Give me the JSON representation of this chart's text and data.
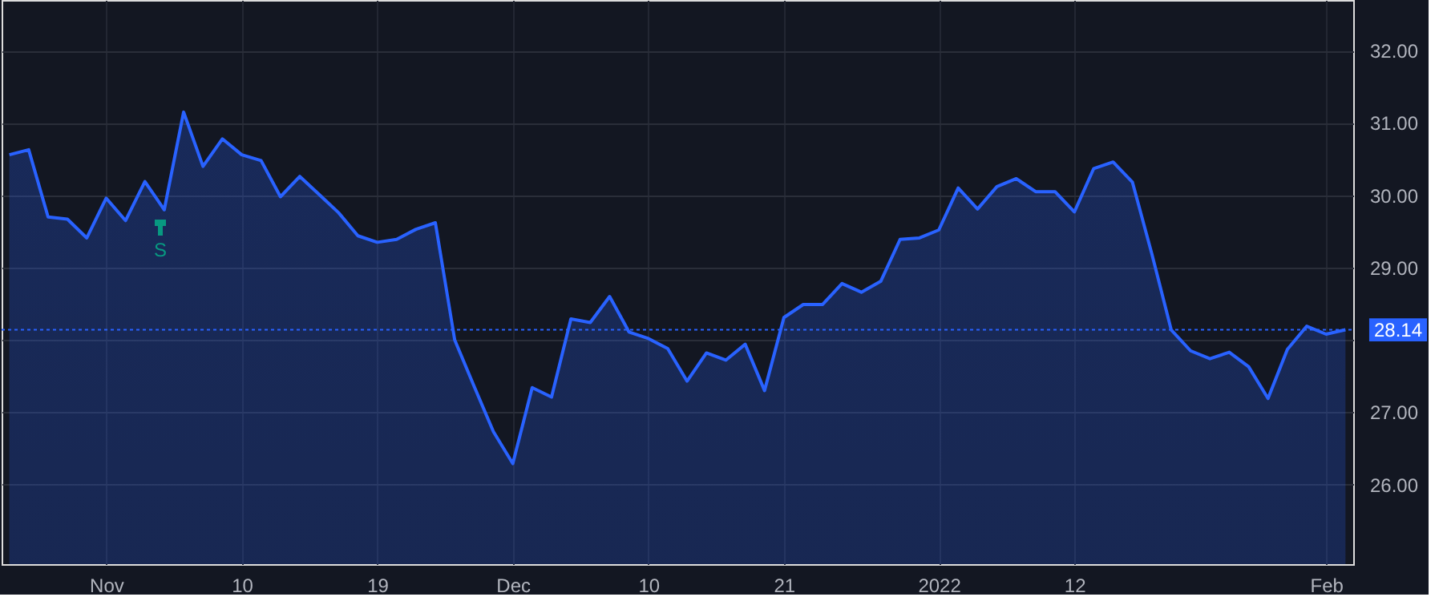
{
  "chart_data": {
    "type": "area",
    "categories": [
      null,
      null,
      null,
      null,
      null,
      "Nov",
      null,
      null,
      null,
      null,
      null,
      null,
      "10",
      null,
      null,
      null,
      null,
      null,
      null,
      "19",
      null,
      null,
      null,
      null,
      null,
      null,
      "Dec",
      null,
      null,
      null,
      null,
      null,
      null,
      "10",
      null,
      null,
      null,
      null,
      null,
      null,
      "21",
      null,
      null,
      null,
      null,
      null,
      null,
      null,
      "2022",
      null,
      null,
      null,
      null,
      null,
      null,
      "12",
      null,
      null,
      null,
      null,
      null,
      null,
      null,
      null,
      null,
      null,
      null,
      null,
      "Feb",
      null
    ],
    "series": [
      {
        "color": "#2962ff",
        "values": [
          30.56,
          30.63,
          29.7,
          29.67,
          29.41,
          29.96,
          29.65,
          30.19,
          29.8,
          31.15,
          30.4,
          30.78,
          30.56,
          30.48,
          29.98,
          30.26,
          30.01,
          29.76,
          29.44,
          29.35,
          29.39,
          29.53,
          29.62,
          28.0,
          27.36,
          26.73,
          26.29,
          27.34,
          27.21,
          28.29,
          28.24,
          28.6,
          28.11,
          28.02,
          27.88,
          27.43,
          27.82,
          27.72,
          27.94,
          27.3,
          28.31,
          28.49,
          28.49,
          28.78,
          28.66,
          28.81,
          29.39,
          29.41,
          29.52,
          30.1,
          29.81,
          30.12,
          30.23,
          30.05,
          30.05,
          29.77,
          30.37,
          30.46,
          30.18,
          29.19,
          28.14,
          27.85,
          27.74,
          27.83,
          27.63,
          27.19,
          27.87,
          28.19,
          28.08,
          28.14
        ]
      }
    ],
    "ylim": [
      24.9,
      32.7
    ],
    "yticks": [
      {
        "value": 26,
        "label": "26.00"
      },
      {
        "value": 27,
        "label": "27.00"
      },
      {
        "value": 28,
        "label": null
      },
      {
        "value": 29,
        "label": "29.00"
      },
      {
        "value": 30,
        "label": "30.00"
      },
      {
        "value": 31,
        "label": "31.00"
      },
      {
        "value": 32,
        "label": "32.00"
      }
    ],
    "ref_lines": [
      {
        "axis": "y",
        "value": 28.14,
        "label": "28.14",
        "color": "#2962ff",
        "line_style": "dotted"
      }
    ],
    "annotations": [
      "S"
    ],
    "grid": true
  }
}
